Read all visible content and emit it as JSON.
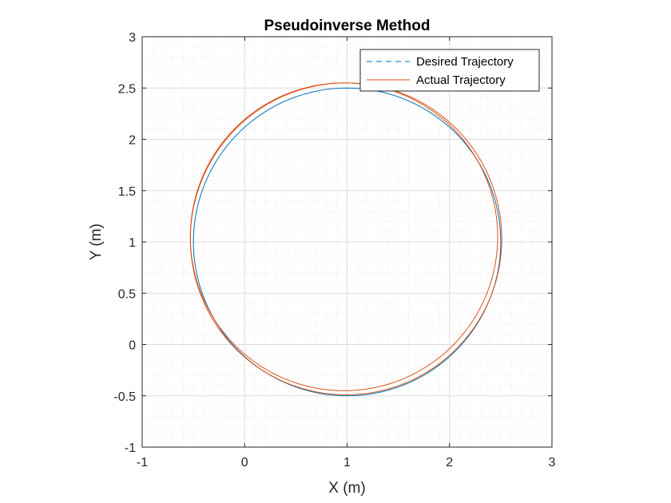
{
  "chart_data": {
    "type": "line",
    "title": "Pseudoinverse Method",
    "xlabel": "X (m)",
    "ylabel": "Y (m)",
    "xlim": [
      -1,
      3
    ],
    "ylim": [
      -1,
      3
    ],
    "xticks": [
      -1,
      0,
      1,
      2,
      3
    ],
    "yticks": [
      -1,
      -0.5,
      0,
      0.5,
      1,
      1.5,
      2,
      2.5,
      3
    ],
    "xtick_labels": [
      "-1",
      "0",
      "1",
      "2",
      "3"
    ],
    "ytick_labels": [
      "-1",
      "-0.5",
      "0",
      "0.5",
      "1",
      "1.5",
      "2",
      "2.5",
      "3"
    ],
    "grid": true,
    "minor_grid": true,
    "legend_position": "top-right",
    "series": [
      {
        "name": "Desired Trajectory",
        "color": "#0072BD",
        "line_style": "dashed",
        "shape": "circle",
        "center": [
          1,
          1
        ],
        "radius": 1.5
      },
      {
        "name": "Actual Trajectory",
        "color": "#D95319",
        "line_style": "solid",
        "shape": "loops",
        "loops": [
          {
            "center": [
              0.99,
              1.03
            ],
            "radius": 1.52
          },
          {
            "center": [
              0.97,
              1.05
            ],
            "radius": 1.5
          }
        ]
      }
    ]
  }
}
